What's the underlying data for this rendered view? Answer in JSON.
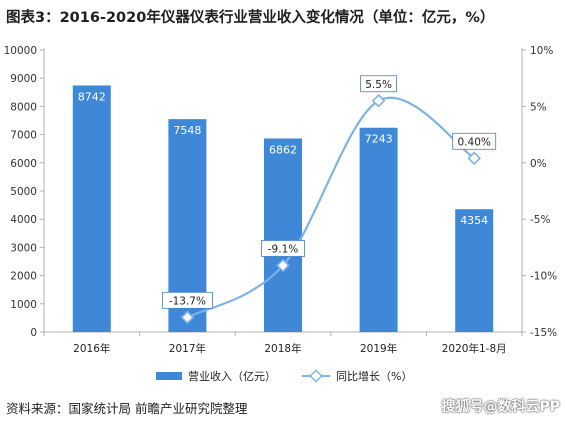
{
  "title": "图表3：2016-2020年仪器仪表行业营业收入变化情况（单位：亿元，%）",
  "source": "资料来源：国家统计局 前瞻产业研究院整理",
  "watermark": "搜狐号@数科云PP",
  "colors": {
    "bar": "#3f88d8",
    "line": "#7db3e8",
    "marker": "#7db3e8"
  },
  "chart_data": {
    "type": "bar",
    "categories": [
      "2016年",
      "2017年",
      "2018年",
      "2019年",
      "2020年1-8月"
    ],
    "series": [
      {
        "name": "营业收入（亿元）",
        "type": "bar",
        "axis": "left",
        "values": [
          8742,
          7548,
          6862,
          7243,
          4354
        ],
        "labels": [
          "8742",
          "7548",
          "6862",
          "7243",
          "4354"
        ]
      },
      {
        "name": "同比增长（%）",
        "type": "line",
        "axis": "right",
        "values": [
          null,
          -13.7,
          -9.1,
          5.5,
          0.4
        ],
        "labels": [
          "",
          "-13.7%",
          "-9.1%",
          "5.5%",
          "0.40%"
        ]
      }
    ],
    "ylim_left": [
      0,
      10000
    ],
    "yticks_left": [
      "0",
      "1000",
      "2000",
      "3000",
      "4000",
      "5000",
      "6000",
      "7000",
      "8000",
      "9000",
      "10000"
    ],
    "ylim_right": [
      -15,
      10
    ],
    "yticks_right": [
      "-15%",
      "-10%",
      "-5%",
      "0%",
      "5%",
      "10%"
    ],
    "legend_position": "bottom",
    "grid": false
  }
}
